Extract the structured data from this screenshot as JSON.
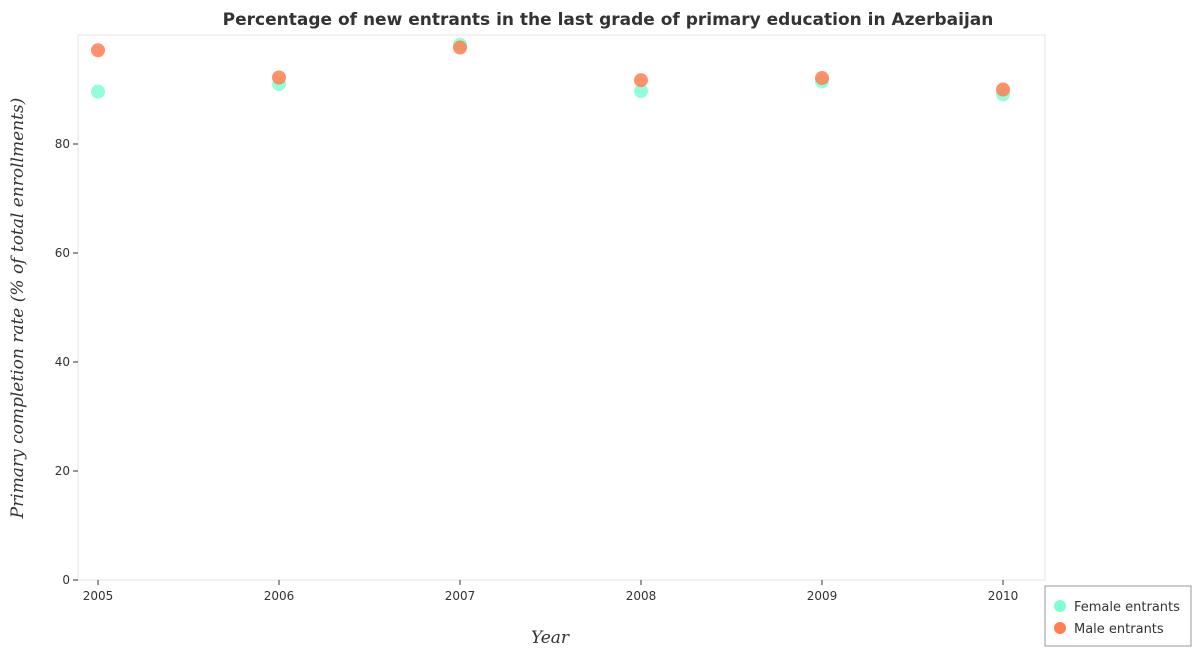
{
  "chart_data": {
    "type": "scatter",
    "title": "Percentage of new entrants in the last grade of primary education in Azerbaijan",
    "xlabel": "Year",
    "ylabel": "Primary completion rate (% of total enrollments)",
    "categories": [
      "2005",
      "2006",
      "2007",
      "2008",
      "2009",
      "2010"
    ],
    "ylim": [
      0,
      100
    ],
    "yticks": [
      "0",
      "20",
      "40",
      "60",
      "80"
    ],
    "grid": false,
    "legend_position": "bottom-right",
    "series": [
      {
        "name": "Female entrants",
        "color": "#7fffd4",
        "values": [
          89.6,
          91.0,
          98.2,
          89.7,
          91.5,
          89.1
        ]
      },
      {
        "name": "Male entrants",
        "color": "#ff7f50",
        "values": [
          97.2,
          92.2,
          97.7,
          91.7,
          92.1,
          90.0
        ]
      }
    ]
  }
}
